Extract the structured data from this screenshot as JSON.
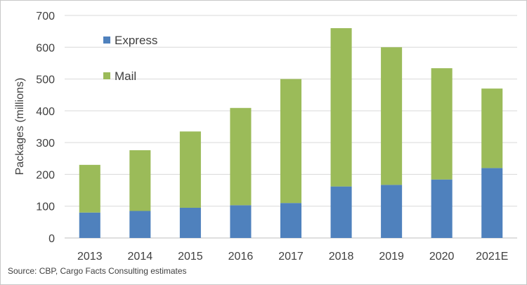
{
  "chart_data": {
    "type": "bar",
    "stacked": true,
    "categories": [
      "2013",
      "2014",
      "2015",
      "2016",
      "2017",
      "2018",
      "2019",
      "2020",
      "2021E"
    ],
    "series": [
      {
        "name": "Express",
        "color": "#4f81bd",
        "values": [
          80,
          85,
          95,
          103,
          110,
          162,
          167,
          184,
          220
        ]
      },
      {
        "name": "Mail",
        "color": "#9bbb59",
        "values": [
          150,
          191,
          240,
          306,
          390,
          498,
          433,
          350,
          250
        ]
      }
    ],
    "ylabel": "Packages (millions)",
    "ylim": [
      0,
      700
    ],
    "yticks": [
      0,
      100,
      200,
      300,
      400,
      500,
      600,
      700
    ],
    "grid": true,
    "legend": "top-left",
    "source": "Source: CBP, Cargo Facts Consulting estimates"
  }
}
